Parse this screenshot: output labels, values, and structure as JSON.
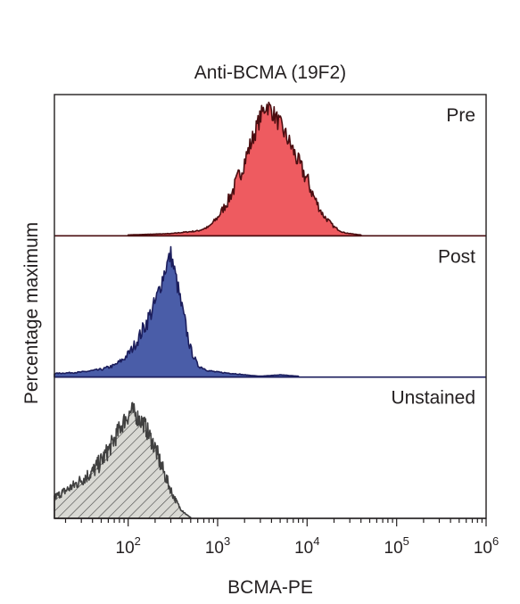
{
  "chart_data": {
    "type": "area",
    "title": "Anti-BCMA (19F2)",
    "xlabel": "BCMA-PE",
    "ylabel": "Percentage maximum",
    "x_scale": "log",
    "xlim": [
      15,
      1000000
    ],
    "x_ticks": [
      {
        "value": 100,
        "base": "10",
        "exp": "2"
      },
      {
        "value": 1000,
        "base": "10",
        "exp": "3"
      },
      {
        "value": 10000,
        "base": "10",
        "exp": "4"
      },
      {
        "value": 100000,
        "base": "10",
        "exp": "5"
      },
      {
        "value": 1000000,
        "base": "10",
        "exp": "6"
      }
    ],
    "grid": false,
    "legend": "none",
    "series": [
      {
        "name": "Pre",
        "fill": "#ee5b60",
        "stroke": "#4a0d10",
        "pattern": "solid",
        "x": [
          100,
          300,
          600,
          800,
          1000,
          1300,
          1600,
          2000,
          2500,
          3000,
          3500,
          4000,
          5000,
          6000,
          7000,
          8000,
          10000,
          12000,
          15000,
          20000,
          25000,
          30000,
          40000
        ],
        "y": [
          0,
          1,
          3,
          6,
          13,
          25,
          38,
          55,
          73,
          88,
          97,
          93,
          82,
          72,
          63,
          54,
          41,
          28,
          15,
          6,
          2,
          1,
          0
        ]
      },
      {
        "name": "Post",
        "fill": "#4a5da8",
        "stroke": "#1b1d5c",
        "pattern": "solid",
        "x": [
          15,
          30,
          50,
          70,
          90,
          110,
          130,
          160,
          200,
          230,
          260,
          300,
          350,
          400,
          450,
          500,
          600,
          800,
          1000,
          1500,
          2000,
          3000,
          5000,
          8000
        ],
        "y": [
          2,
          3,
          5,
          8,
          13,
          20,
          28,
          40,
          54,
          68,
          80,
          91,
          70,
          50,
          34,
          20,
          8,
          4,
          3,
          2,
          1,
          0,
          1,
          0
        ]
      },
      {
        "name": "Unstained",
        "fill": "#d9d9d4",
        "stroke": "#404040",
        "pattern": "hatch",
        "x": [
          15,
          20,
          25,
          30,
          40,
          50,
          60,
          70,
          80,
          90,
          100,
          110,
          130,
          150,
          170,
          200,
          230,
          270,
          320,
          380,
          450,
          500
        ],
        "y": [
          15,
          20,
          24,
          28,
          34,
          42,
          50,
          58,
          66,
          72,
          76,
          80,
          74,
          70,
          62,
          52,
          40,
          28,
          16,
          7,
          2,
          0
        ]
      }
    ]
  }
}
